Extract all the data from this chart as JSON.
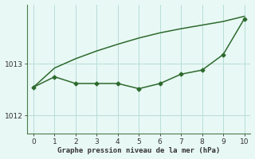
{
  "xlabel": "Graphe pression niveau de la mer (hPa)",
  "background_color": "#e8f8f5",
  "grid_color": "#b8ddd8",
  "line_color": "#2d6a2d",
  "axis_color": "#4a7a4a",
  "tick_color": "#333333",
  "xlim": [
    -0.3,
    10.3
  ],
  "ylim": [
    1011.65,
    1014.15
  ],
  "yticks": [
    1012,
    1013
  ],
  "xticks": [
    0,
    1,
    2,
    3,
    4,
    5,
    6,
    7,
    8,
    9,
    10
  ],
  "line1_x": [
    0,
    1,
    2,
    3,
    4,
    5,
    6,
    7,
    8,
    9,
    10
  ],
  "line1_y": [
    1012.55,
    1012.75,
    1012.62,
    1012.62,
    1012.62,
    1012.52,
    1012.62,
    1012.8,
    1012.88,
    1013.18,
    1013.87
  ],
  "line2_x": [
    0,
    1,
    2,
    3,
    4,
    5,
    6,
    7,
    8,
    9,
    10
  ],
  "line2_y": [
    1012.55,
    1012.92,
    1013.1,
    1013.25,
    1013.38,
    1013.5,
    1013.6,
    1013.68,
    1013.75,
    1013.82,
    1013.92
  ]
}
